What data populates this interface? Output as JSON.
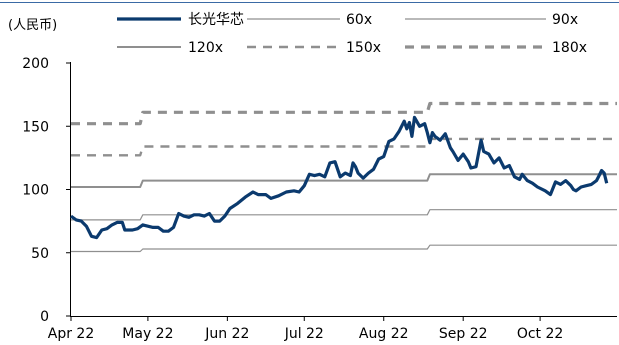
{
  "chart_data": {
    "type": "line",
    "unit_label": "(人民币)",
    "ylim": [
      0,
      200
    ],
    "yticks": [
      0,
      50,
      100,
      150,
      200
    ],
    "xlim": [
      "2022-04-01",
      "2022-10-31"
    ],
    "xticks": [
      {
        "label": "Apr 22",
        "date": "2022-04-01"
      },
      {
        "label": "May 22",
        "date": "2022-05-01"
      },
      {
        "label": "Jun 22",
        "date": "2022-06-01"
      },
      {
        "label": "Jul 22",
        "date": "2022-07-01"
      },
      {
        "label": "Aug 22",
        "date": "2022-08-01"
      },
      {
        "label": "Sep 22",
        "date": "2022-09-01"
      },
      {
        "label": "Oct 22",
        "date": "2022-10-01"
      }
    ],
    "legend_position": "top",
    "series": [
      {
        "name": "长光华芯",
        "color": "#0b3a6e",
        "style": "solid-thick",
        "points": [
          [
            "2022-04-01",
            79
          ],
          [
            "2022-04-03",
            76
          ],
          [
            "2022-04-05",
            75
          ],
          [
            "2022-04-07",
            71
          ],
          [
            "2022-04-09",
            63
          ],
          [
            "2022-04-11",
            62
          ],
          [
            "2022-04-13",
            68
          ],
          [
            "2022-04-15",
            69
          ],
          [
            "2022-04-17",
            72
          ],
          [
            "2022-04-19",
            74
          ],
          [
            "2022-04-21",
            74
          ],
          [
            "2022-04-22",
            68
          ],
          [
            "2022-04-25",
            68
          ],
          [
            "2022-04-27",
            69
          ],
          [
            "2022-04-29",
            72
          ],
          [
            "2022-05-01",
            71
          ],
          [
            "2022-05-03",
            70
          ],
          [
            "2022-05-05",
            70
          ],
          [
            "2022-05-07",
            67
          ],
          [
            "2022-05-09",
            67
          ],
          [
            "2022-05-11",
            70
          ],
          [
            "2022-05-13",
            81
          ],
          [
            "2022-05-15",
            79
          ],
          [
            "2022-05-17",
            78
          ],
          [
            "2022-05-19",
            80
          ],
          [
            "2022-05-21",
            80
          ],
          [
            "2022-05-23",
            79
          ],
          [
            "2022-05-25",
            81
          ],
          [
            "2022-05-27",
            75
          ],
          [
            "2022-05-29",
            75
          ],
          [
            "2022-05-31",
            79
          ],
          [
            "2022-06-02",
            85
          ],
          [
            "2022-06-05",
            89
          ],
          [
            "2022-06-08",
            94
          ],
          [
            "2022-06-11",
            98
          ],
          [
            "2022-06-13",
            96
          ],
          [
            "2022-06-16",
            96
          ],
          [
            "2022-06-18",
            93
          ],
          [
            "2022-06-21",
            95
          ],
          [
            "2022-06-24",
            98
          ],
          [
            "2022-06-27",
            99
          ],
          [
            "2022-06-29",
            98
          ],
          [
            "2022-07-01",
            103
          ],
          [
            "2022-07-03",
            112
          ],
          [
            "2022-07-05",
            111
          ],
          [
            "2022-07-07",
            112
          ],
          [
            "2022-07-09",
            110
          ],
          [
            "2022-07-11",
            121
          ],
          [
            "2022-07-13",
            122
          ],
          [
            "2022-07-15",
            110
          ],
          [
            "2022-07-17",
            113
          ],
          [
            "2022-07-19",
            111
          ],
          [
            "2022-07-20",
            121
          ],
          [
            "2022-07-21",
            118
          ],
          [
            "2022-07-22",
            113
          ],
          [
            "2022-07-24",
            109
          ],
          [
            "2022-07-26",
            113
          ],
          [
            "2022-07-28",
            116
          ],
          [
            "2022-07-30",
            124
          ],
          [
            "2022-08-01",
            126
          ],
          [
            "2022-08-03",
            138
          ],
          [
            "2022-08-05",
            140
          ],
          [
            "2022-08-07",
            146
          ],
          [
            "2022-08-09",
            154
          ],
          [
            "2022-08-10",
            148
          ],
          [
            "2022-08-11",
            153
          ],
          [
            "2022-08-12",
            142
          ],
          [
            "2022-08-13",
            157
          ],
          [
            "2022-08-15",
            150
          ],
          [
            "2022-08-17",
            152
          ],
          [
            "2022-08-18",
            145
          ],
          [
            "2022-08-19",
            137
          ],
          [
            "2022-08-20",
            145
          ],
          [
            "2022-08-21",
            142
          ],
          [
            "2022-08-23",
            139
          ],
          [
            "2022-08-25",
            144
          ],
          [
            "2022-08-27",
            133
          ],
          [
            "2022-08-28",
            130
          ],
          [
            "2022-08-30",
            123
          ],
          [
            "2022-09-01",
            128
          ],
          [
            "2022-09-03",
            122
          ],
          [
            "2022-09-04",
            117
          ],
          [
            "2022-09-06",
            118
          ],
          [
            "2022-09-08",
            139
          ],
          [
            "2022-09-09",
            130
          ],
          [
            "2022-09-11",
            128
          ],
          [
            "2022-09-13",
            121
          ],
          [
            "2022-09-15",
            125
          ],
          [
            "2022-09-17",
            117
          ],
          [
            "2022-09-19",
            119
          ],
          [
            "2022-09-21",
            110
          ],
          [
            "2022-09-23",
            108
          ],
          [
            "2022-09-24",
            112
          ],
          [
            "2022-09-26",
            107
          ],
          [
            "2022-09-28",
            105
          ],
          [
            "2022-09-30",
            102
          ],
          [
            "2022-10-03",
            99
          ],
          [
            "2022-10-05",
            96
          ],
          [
            "2022-10-07",
            106
          ],
          [
            "2022-10-09",
            104
          ],
          [
            "2022-10-11",
            107
          ],
          [
            "2022-10-13",
            103
          ],
          [
            "2022-10-14",
            100
          ],
          [
            "2022-10-15",
            99
          ],
          [
            "2022-10-17",
            102
          ],
          [
            "2022-10-19",
            103
          ],
          [
            "2022-10-21",
            104
          ],
          [
            "2022-10-23",
            107
          ],
          [
            "2022-10-24",
            111
          ],
          [
            "2022-10-25",
            115
          ],
          [
            "2022-10-26",
            113
          ],
          [
            "2022-10-27",
            105
          ]
        ]
      },
      {
        "name": "60x",
        "color": "#8f8f8f",
        "style": "solid-thin",
        "points": [
          [
            "2022-04-01",
            51
          ],
          [
            "2022-04-28",
            51
          ],
          [
            "2022-04-29",
            53
          ],
          [
            "2022-08-18",
            53
          ],
          [
            "2022-08-19",
            56
          ],
          [
            "2022-10-31",
            56
          ]
        ]
      },
      {
        "name": "90x",
        "color": "#8f8f8f",
        "style": "solid-thin",
        "points": [
          [
            "2022-04-01",
            76
          ],
          [
            "2022-04-28",
            76
          ],
          [
            "2022-04-29",
            80
          ],
          [
            "2022-08-18",
            80
          ],
          [
            "2022-08-19",
            84
          ],
          [
            "2022-10-31",
            84
          ]
        ]
      },
      {
        "name": "120x",
        "color": "#8f8f8f",
        "style": "solid-medium",
        "points": [
          [
            "2022-04-01",
            102
          ],
          [
            "2022-04-28",
            102
          ],
          [
            "2022-04-29",
            107
          ],
          [
            "2022-08-18",
            107
          ],
          [
            "2022-08-19",
            112
          ],
          [
            "2022-10-31",
            112
          ]
        ]
      },
      {
        "name": "150x",
        "color": "#8f8f8f",
        "style": "dashed",
        "points": [
          [
            "2022-04-01",
            127
          ],
          [
            "2022-04-28",
            127
          ],
          [
            "2022-04-29",
            134
          ],
          [
            "2022-08-18",
            134
          ],
          [
            "2022-08-19",
            140
          ],
          [
            "2022-10-31",
            140
          ]
        ]
      },
      {
        "name": "180x",
        "color": "#8f8f8f",
        "style": "dashed-thick",
        "points": [
          [
            "2022-04-01",
            152
          ],
          [
            "2022-04-28",
            152
          ],
          [
            "2022-04-29",
            161
          ],
          [
            "2022-08-18",
            161
          ],
          [
            "2022-08-19",
            168
          ],
          [
            "2022-10-31",
            168
          ]
        ]
      }
    ]
  }
}
